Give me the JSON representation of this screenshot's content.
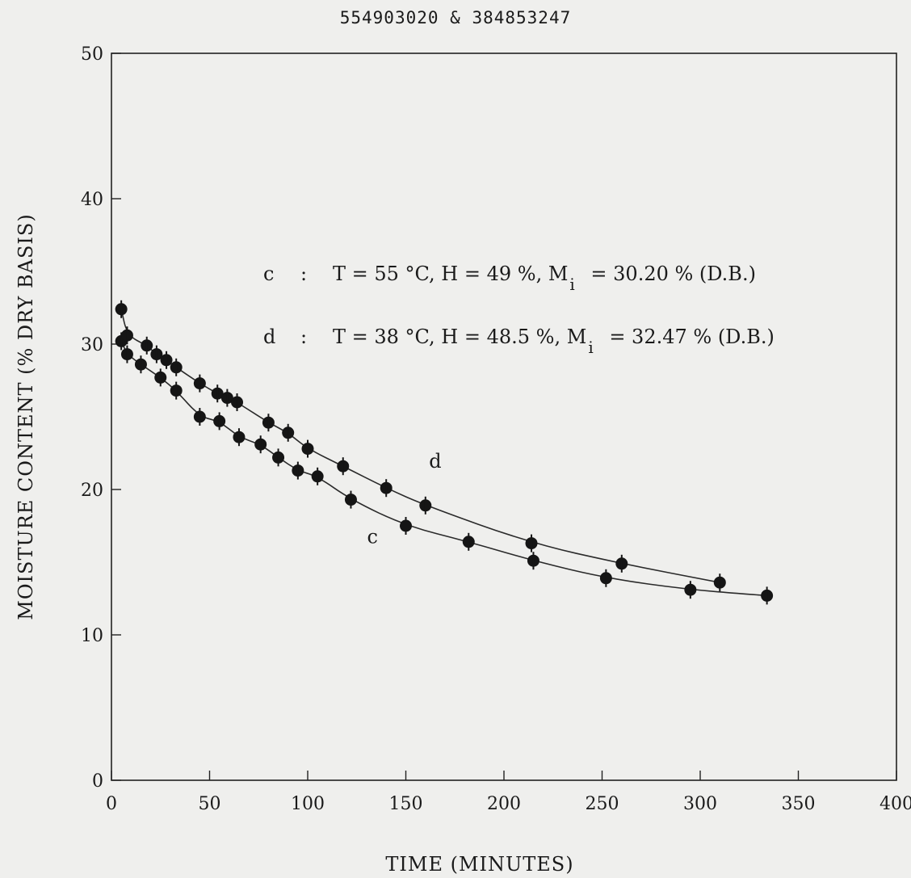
{
  "header": {
    "ids": "554903020 & 384853247"
  },
  "chart_data": {
    "type": "scatter",
    "title": "",
    "xlabel": "TIME (MINUTES)",
    "ylabel": "MOISTURE CONTENT (% DRY BASIS)",
    "xlim": [
      0,
      400
    ],
    "ylim": [
      0,
      50
    ],
    "x_ticks": [
      "0",
      "50",
      "100",
      "150",
      "200",
      "250",
      "300",
      "350",
      "400"
    ],
    "y_ticks": [
      "0",
      "10",
      "20",
      "30",
      "40",
      "50"
    ],
    "grid": false,
    "legend": {
      "placement": "top-right",
      "entries": [
        {
          "key": "c",
          "sep": ":",
          "t": "T = 55 °C, H = 49 %, M",
          "sub": "i",
          "tail": "= 30.20 % (D.B.)"
        },
        {
          "key": "d",
          "sep": ":",
          "t": "T = 38 °C, H = 48.5 %, M",
          "sub": "i",
          "tail": "= 32.47 % (D.B.)"
        }
      ]
    },
    "series": [
      {
        "name": "c",
        "points": [
          [
            5,
            30.2
          ],
          [
            8,
            29.3
          ],
          [
            15,
            28.6
          ],
          [
            25,
            27.7
          ],
          [
            33,
            26.8
          ],
          [
            45,
            25.0
          ],
          [
            55,
            24.7
          ],
          [
            65,
            23.6
          ],
          [
            76,
            23.1
          ],
          [
            85,
            22.2
          ],
          [
            95,
            21.3
          ],
          [
            105,
            20.9
          ],
          [
            122,
            19.3
          ],
          [
            150,
            17.5
          ],
          [
            182,
            16.4
          ],
          [
            215,
            15.1
          ],
          [
            252,
            13.9
          ],
          [
            295,
            13.1
          ],
          [
            334,
            12.7
          ]
        ]
      },
      {
        "name": "d",
        "points": [
          [
            5,
            32.4
          ],
          [
            8,
            30.6
          ],
          [
            18,
            29.9
          ],
          [
            23,
            29.3
          ],
          [
            28,
            28.9
          ],
          [
            33,
            28.4
          ],
          [
            45,
            27.3
          ],
          [
            54,
            26.6
          ],
          [
            59,
            26.3
          ],
          [
            64,
            26.0
          ],
          [
            80,
            24.6
          ],
          [
            90,
            23.9
          ],
          [
            100,
            22.8
          ],
          [
            118,
            21.6
          ],
          [
            140,
            20.1
          ],
          [
            160,
            18.9
          ],
          [
            214,
            16.3
          ],
          [
            260,
            14.9
          ],
          [
            310,
            13.6
          ]
        ]
      }
    ],
    "annotations": [
      {
        "text": "d",
        "x": 165,
        "y": 21.5
      },
      {
        "text": "c",
        "x": 133,
        "y": 16.3
      }
    ]
  }
}
